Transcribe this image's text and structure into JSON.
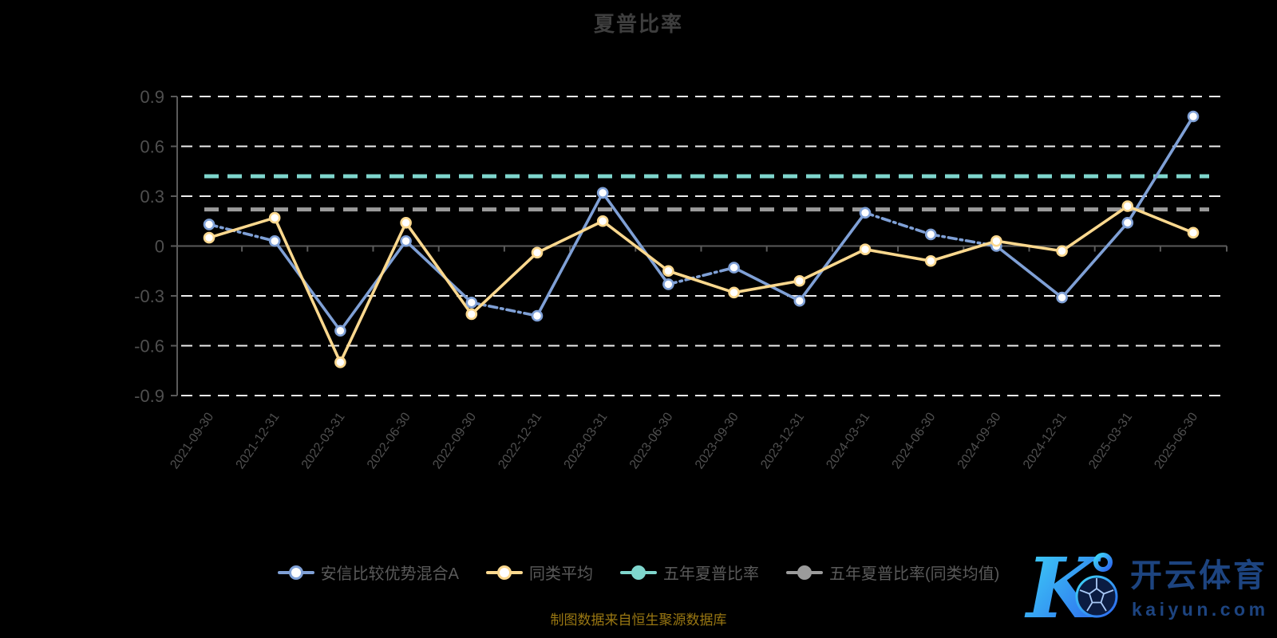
{
  "title": "夏普比率",
  "footer": "制图数据来自恒生聚源数据库",
  "watermark": {
    "k_letter": "K",
    "brand": "开云体育",
    "domain": "kaiyun.com",
    "text_color": "#1d4480",
    "gradient_start": "#3fd8f7",
    "gradient_end": "#2c63ee"
  },
  "colors": {
    "background": "#000000",
    "gridline": "#ededed",
    "axis_line": "#5a5a5a",
    "tick_label": "#4f4f4f",
    "title_text": "#3e3e3e",
    "legend_text": "#5a5a5a",
    "footer_text": "#997712",
    "marker_fill": "#ffffff"
  },
  "chart_data": {
    "type": "line",
    "x_labels": [
      "2021-09-30",
      "2021-12-31",
      "2022-03-31",
      "2022-06-30",
      "2022-09-30",
      "2022-12-31",
      "2023-03-31",
      "2023-06-30",
      "2023-09-30",
      "2023-12-31",
      "2024-03-31",
      "2024-06-30",
      "2024-09-30",
      "2024-12-31",
      "2025-03-31",
      "2025-06-30"
    ],
    "y_ticks": [
      0.9,
      0.6,
      0.3,
      0,
      -0.3,
      -0.6,
      -0.9
    ],
    "ylim": [
      -0.9,
      0.9
    ],
    "grid": true,
    "legend_position": "bottom",
    "series": [
      {
        "name": "安信比较优势混合A",
        "type": "line",
        "color": "#7fa0d6",
        "marker_fill": "#ffffff",
        "line_style": "mixed-dash-dot",
        "dashed_segments": [
          0,
          4,
          7,
          10,
          11
        ],
        "values": [
          0.13,
          0.03,
          -0.51,
          0.03,
          -0.34,
          -0.42,
          0.32,
          -0.23,
          -0.13,
          -0.33,
          0.2,
          0.07,
          0.0,
          -0.31,
          0.14,
          0.78
        ]
      },
      {
        "name": "同类平均",
        "type": "line",
        "color": "#fbd88e",
        "marker_fill": "#ffffff",
        "line_style": "solid",
        "dashed_segments": [],
        "values": [
          0.05,
          0.17,
          -0.7,
          0.14,
          -0.41,
          -0.04,
          0.15,
          -0.15,
          -0.28,
          -0.21,
          -0.02,
          -0.09,
          0.03,
          -0.03,
          0.24,
          0.08
        ]
      },
      {
        "name": "五年夏普比率",
        "type": "constant-line",
        "color": "#7fd6cd",
        "marker_fill": "#7fd6cd",
        "line_style": "dashed",
        "constant": 0.42
      },
      {
        "name": "五年夏普比率(同类均值)",
        "type": "constant-line",
        "color": "#9b9b9b",
        "marker_fill": "#9b9b9b",
        "line_style": "dashed",
        "constant": 0.22
      }
    ]
  }
}
